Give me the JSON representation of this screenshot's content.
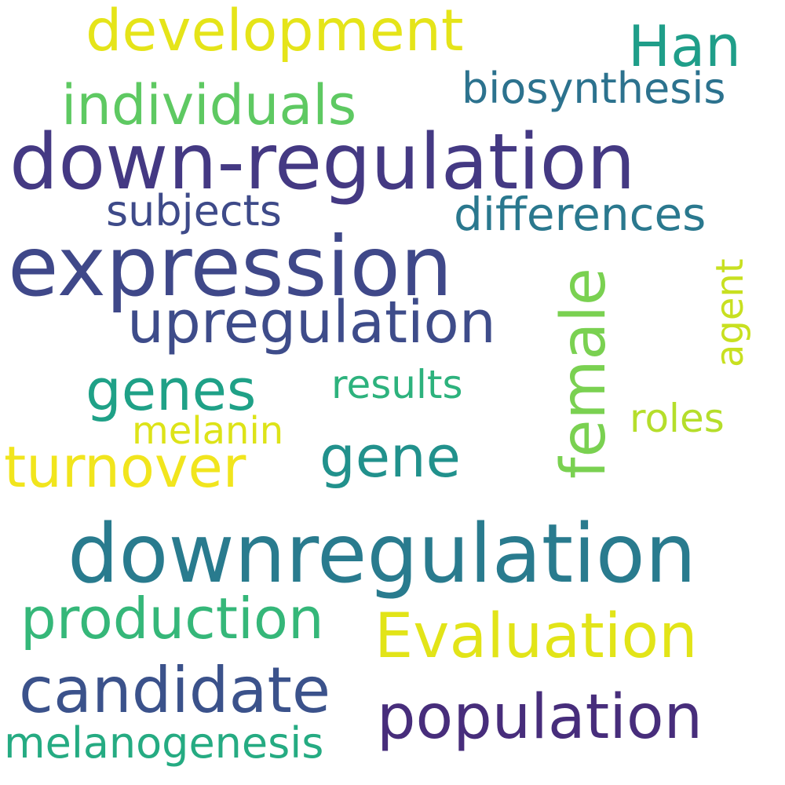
{
  "words": [
    {
      "text": "down-regulation",
      "color": "#443983"
    },
    {
      "text": "expression",
      "color": "#3f4889"
    },
    {
      "text": "downregulation",
      "color": "#297b8e"
    },
    {
      "text": "population",
      "color": "#472d7b"
    },
    {
      "text": "candidate",
      "color": "#3b528b"
    },
    {
      "text": "upregulation",
      "color": "#3e4c8a"
    },
    {
      "text": "development",
      "color": "#e5e419"
    },
    {
      "text": "Evaluation",
      "color": "#e2e418"
    },
    {
      "text": "production",
      "color": "#35b779"
    },
    {
      "text": "turnover",
      "color": "#f1e51d"
    },
    {
      "text": "individuals",
      "color": "#5ec962"
    },
    {
      "text": "genes",
      "color": "#1fa187"
    },
    {
      "text": "gene",
      "color": "#21918c"
    },
    {
      "text": "Han",
      "color": "#1f9e89"
    },
    {
      "text": "differences",
      "color": "#2a788e"
    },
    {
      "text": "biosynthesis",
      "color": "#2c728e"
    },
    {
      "text": "melanogenesis",
      "color": "#25ab82"
    },
    {
      "text": "subjects",
      "color": "#3e4a89"
    },
    {
      "text": "results",
      "color": "#2db27d"
    },
    {
      "text": "roles",
      "color": "#b5de2b"
    },
    {
      "text": "melanin",
      "color": "#dde318"
    },
    {
      "text": "female",
      "color": "#7ad151"
    },
    {
      "text": "agent",
      "color": "#c8e020"
    }
  ]
}
